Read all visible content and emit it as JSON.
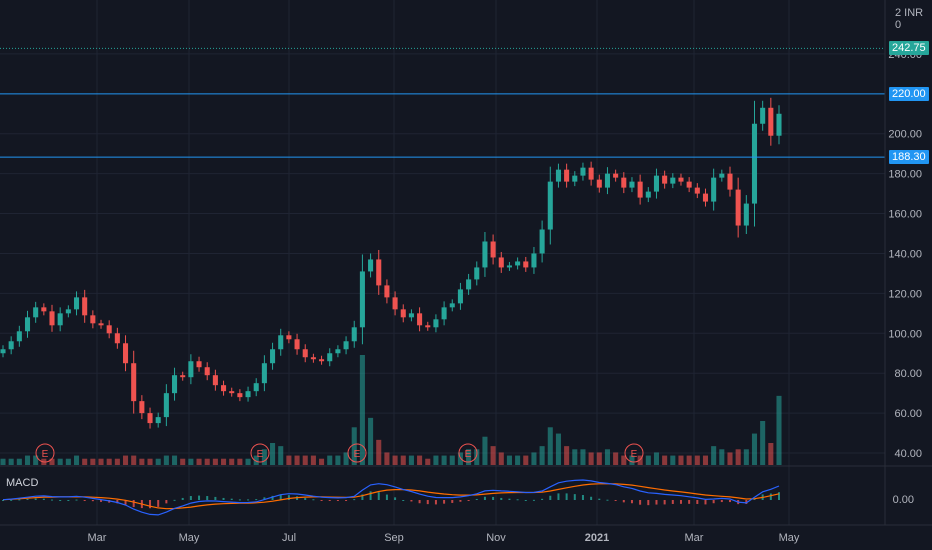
{
  "header": {
    "currency_label": "2 INR 0"
  },
  "indicator": {
    "label": "MACD"
  },
  "price_tags": [
    {
      "text": "242.75",
      "value": 242.75,
      "color": "#26a69a"
    },
    {
      "text": "220.00",
      "value": 220.0,
      "color": "#2196f3"
    },
    {
      "text": "188.30",
      "value": 188.3,
      "color": "#2196f3"
    }
  ],
  "horizontal_lines": [
    {
      "value": 242.75,
      "color": "#26a69a",
      "style": "dotted"
    },
    {
      "value": 220.0,
      "color": "#2196f3",
      "style": "solid"
    },
    {
      "value": 188.3,
      "color": "#2196f3",
      "style": "solid"
    }
  ],
  "earnings_markers": [
    {
      "text": "E",
      "month_pos": "Feb"
    },
    {
      "text": "E",
      "month_pos": "Jun"
    },
    {
      "text": "E",
      "month_pos": "Aug"
    },
    {
      "text": "E",
      "month_pos": "Nov"
    },
    {
      "text": "E",
      "month_pos": "Feb"
    }
  ],
  "colors": {
    "up": "#26a69a",
    "down": "#ef5350",
    "macd": "#2962ff",
    "signal": "#ff6d00",
    "grid": "#1f2433",
    "background": "#131722"
  },
  "chart_data": {
    "type": "candlestick",
    "ylim": [
      34,
      262
    ],
    "y_ticks": [
      "40.00",
      "60.00",
      "80.00",
      "100.00",
      "120.00",
      "140.00",
      "160.00",
      "180.00",
      "200.00",
      "240.00"
    ],
    "y_tick_values": [
      40,
      60,
      80,
      100,
      120,
      140,
      160,
      180,
      200,
      240
    ],
    "x_ticks": [
      "Mar",
      "May",
      "Jul",
      "Sep",
      "Nov",
      "2021",
      "Mar",
      "May"
    ],
    "macd_ticks": [
      "0.00"
    ],
    "series": [
      {
        "name": "price",
        "close": [
          92,
          96,
          101,
          108,
          113,
          111,
          104,
          110,
          112,
          118,
          109,
          105,
          104,
          100,
          95,
          85,
          66,
          60,
          55,
          58,
          70,
          79,
          78,
          86,
          83,
          79,
          74,
          71,
          70,
          68,
          71,
          75,
          85,
          92,
          99,
          97,
          92,
          88,
          87,
          86,
          90,
          92,
          96,
          103,
          131,
          137,
          124,
          118,
          112,
          108,
          110,
          104,
          103,
          107,
          113,
          115,
          122,
          127,
          133,
          146,
          138,
          133,
          134,
          136,
          133,
          140,
          152,
          176,
          182,
          176,
          179,
          183,
          177,
          173,
          180,
          178,
          173,
          176,
          168,
          171,
          179,
          175,
          178,
          176,
          173,
          170,
          166,
          178,
          180,
          172,
          154,
          165,
          205,
          213,
          199,
          210
        ]
      },
      {
        "name": "volume",
        "values": [
          2,
          2,
          2,
          3,
          3,
          2,
          2,
          2,
          2,
          3,
          2,
          2,
          2,
          2,
          2,
          3,
          3,
          2,
          2,
          2,
          3,
          3,
          2,
          2,
          2,
          2,
          2,
          2,
          2,
          2,
          2,
          3,
          5,
          7,
          6,
          3,
          3,
          3,
          3,
          2,
          3,
          3,
          4,
          12,
          35,
          15,
          8,
          4,
          3,
          3,
          3,
          3,
          2,
          3,
          3,
          3,
          4,
          5,
          5,
          9,
          6,
          4,
          3,
          3,
          3,
          4,
          6,
          12,
          10,
          6,
          5,
          5,
          4,
          4,
          5,
          4,
          3,
          3,
          3,
          3,
          4,
          3,
          3,
          3,
          3,
          3,
          3,
          6,
          5,
          4,
          5,
          5,
          10,
          14,
          7,
          22
        ]
      },
      {
        "name": "MACD",
        "values": [
          0.2,
          0.6,
          1.2,
          1.9,
          2.6,
          2.8,
          2.3,
          2.1,
          2.1,
          2.5,
          1.9,
          1.1,
          0.3,
          -0.6,
          -1.7,
          -3.4,
          -6.2,
          -8.3,
          -9.8,
          -10.1,
          -8.2,
          -5.7,
          -4.0,
          -2.1,
          -1.0,
          -0.6,
          -0.7,
          -1.1,
          -1.4,
          -1.8,
          -1.7,
          -1.3,
          0.3,
          2.0,
          3.6,
          4.3,
          4.1,
          3.4,
          2.6,
          1.9,
          1.6,
          1.4,
          1.6,
          2.5,
          6.7,
          10.3,
          11.1,
          10.4,
          8.9,
          7.1,
          5.8,
          4.0,
          2.6,
          1.7,
          1.6,
          1.6,
          2.1,
          3.0,
          4.2,
          6.2,
          6.6,
          6.2,
          5.9,
          5.6,
          5.1,
          5.2,
          6.1,
          9.0,
          11.7,
          12.8,
          13.3,
          13.6,
          13.0,
          11.9,
          11.3,
          10.5,
          9.0,
          7.9,
          6.1,
          4.9,
          4.5,
          3.8,
          3.4,
          2.9,
          2.2,
          1.4,
          0.4,
          0.7,
          1.1,
          0.7,
          -1.4,
          -2.0,
          1.9,
          5.6,
          7.3,
          9.5
        ]
      },
      {
        "name": "Signal",
        "values": [
          0.2,
          0.5,
          0.8,
          1.2,
          1.6,
          1.9,
          2.0,
          2.1,
          2.1,
          2.2,
          2.1,
          1.9,
          1.6,
          1.2,
          0.6,
          -0.2,
          -1.4,
          -2.8,
          -4.2,
          -5.4,
          -5.9,
          -5.8,
          -5.4,
          -4.8,
          -4.0,
          -3.3,
          -2.8,
          -2.5,
          -2.3,
          -2.2,
          -2.1,
          -1.9,
          -1.5,
          -0.8,
          0.1,
          1.0,
          1.6,
          2.0,
          2.1,
          2.1,
          2.0,
          1.9,
          1.8,
          1.9,
          2.9,
          4.4,
          5.8,
          6.7,
          7.1,
          7.1,
          6.8,
          6.2,
          5.4,
          4.7,
          4.1,
          3.6,
          3.3,
          3.3,
          3.5,
          4.0,
          4.5,
          4.8,
          5.0,
          5.1,
          5.1,
          5.1,
          5.3,
          6.1,
          7.2,
          8.3,
          9.3,
          10.2,
          10.8,
          11.0,
          11.1,
          11.0,
          10.6,
          10.1,
          9.3,
          8.4,
          7.6,
          6.8,
          6.1,
          5.5,
          4.8,
          4.1,
          3.4,
          2.9,
          2.5,
          2.1,
          1.4,
          0.7,
          0.9,
          1.8,
          2.9,
          4.2
        ]
      }
    ]
  }
}
